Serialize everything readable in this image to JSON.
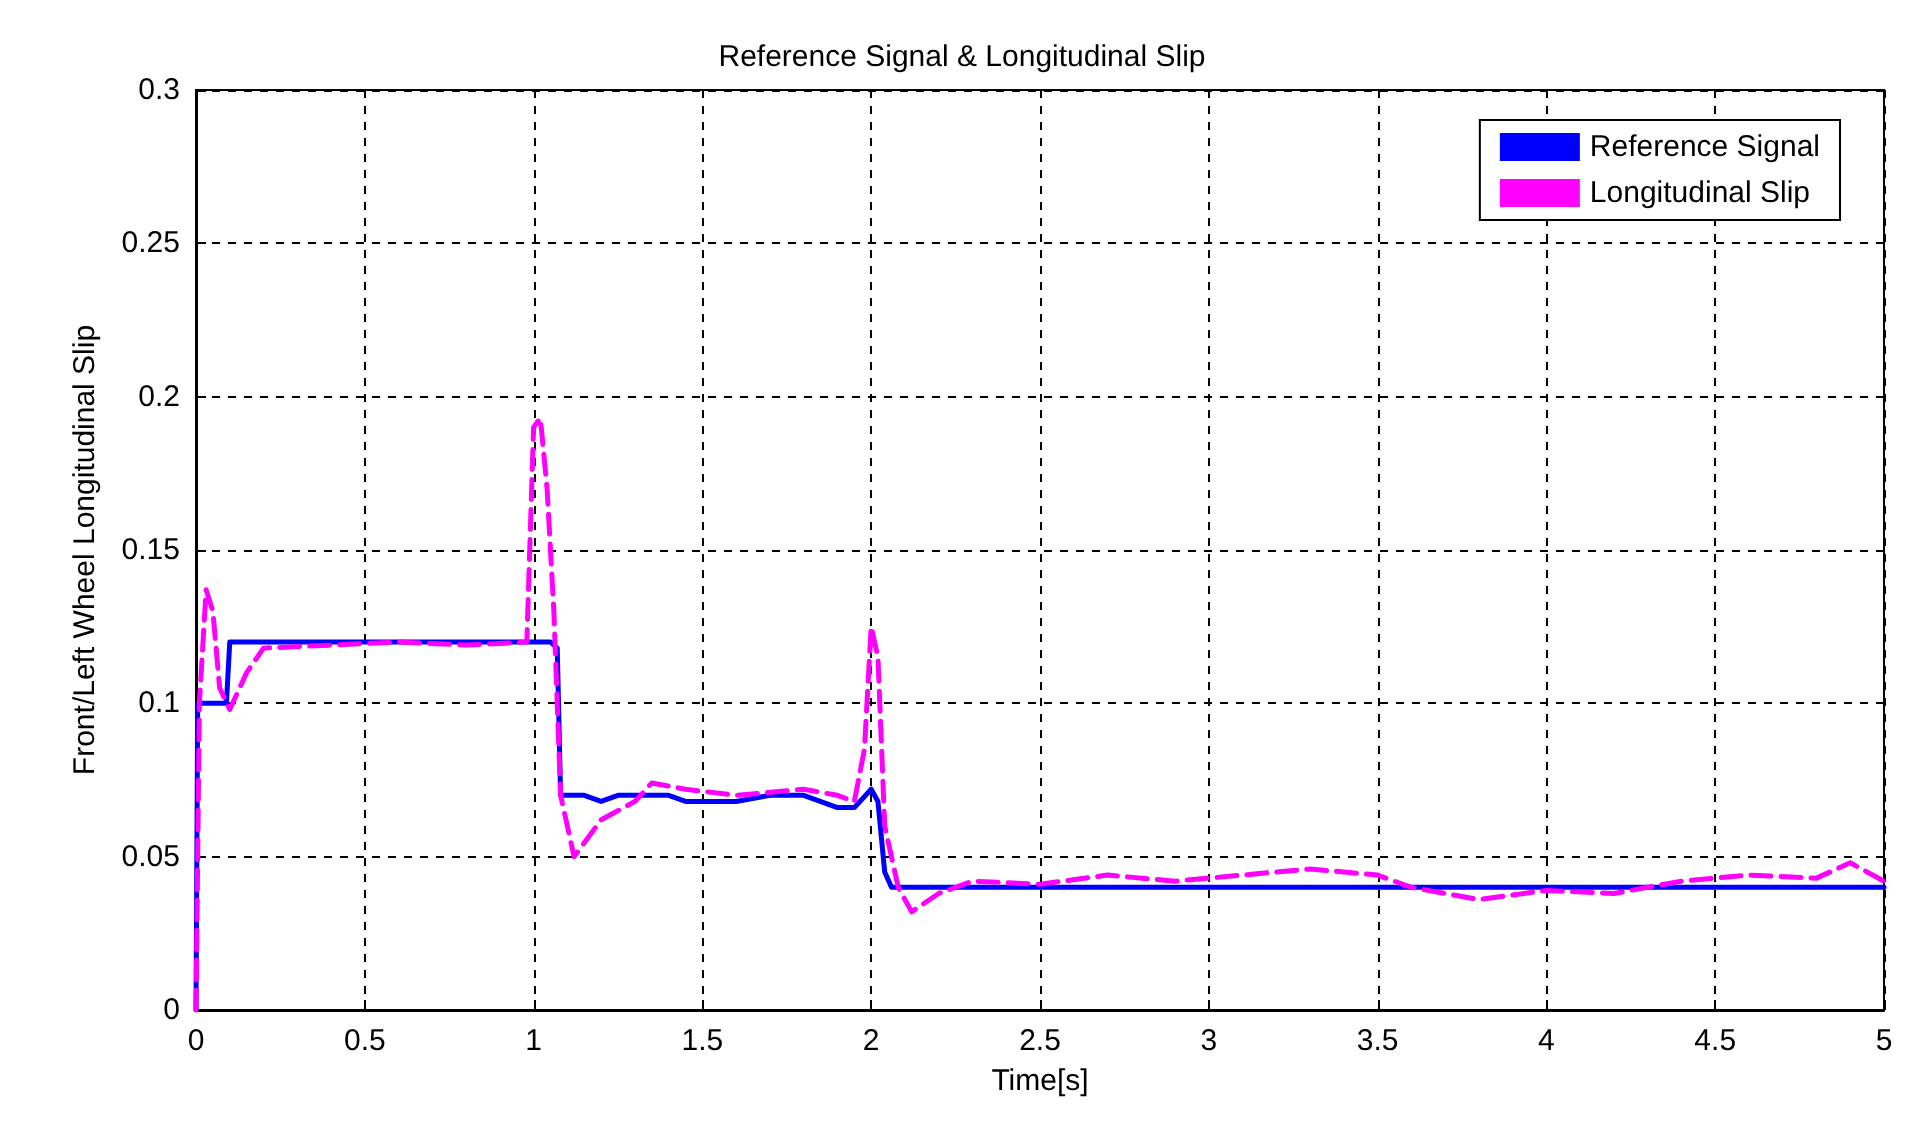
{
  "chart_data": {
    "type": "line",
    "title": "Reference Signal & Longitudinal Slip",
    "xlabel": "Time[s]",
    "ylabel": "Front/Left Wheel Longitudinal Slip",
    "xlim": [
      0,
      5
    ],
    "xticks": [
      0,
      0.5,
      1,
      1.5,
      2,
      2.5,
      3,
      3.5,
      4,
      4.5,
      5
    ],
    "ylim": [
      0,
      0.3
    ],
    "yticks": [
      0,
      0.05,
      0.1,
      0.15,
      0.2,
      0.25,
      0.3
    ],
    "grid": true,
    "legend": "top right",
    "marker": "none",
    "series": [
      {
        "name": "Reference Signal",
        "color": "#0000ff",
        "line_style": "solid",
        "x": [
          0,
          0.005,
          0.09,
          0.1,
          1.05,
          1.07,
          1.08,
          1.15,
          1.2,
          1.25,
          1.4,
          1.45,
          1.6,
          1.7,
          1.8,
          1.9,
          1.95,
          2.0,
          2.02,
          2.04,
          2.06,
          5
        ],
        "values": [
          0,
          0.1,
          0.1,
          0.12,
          0.12,
          0.118,
          0.07,
          0.07,
          0.068,
          0.07,
          0.07,
          0.068,
          0.068,
          0.07,
          0.07,
          0.066,
          0.066,
          0.072,
          0.068,
          0.045,
          0.04,
          0.04
        ]
      },
      {
        "name": "Longitudinal Slip",
        "color": "#ff00ff",
        "line_style": "dashed",
        "x": [
          0,
          0.01,
          0.03,
          0.05,
          0.07,
          0.1,
          0.15,
          0.2,
          0.4,
          0.6,
          0.8,
          0.98,
          1.0,
          1.02,
          1.04,
          1.06,
          1.08,
          1.12,
          1.2,
          1.3,
          1.35,
          1.45,
          1.6,
          1.8,
          1.9,
          1.95,
          1.98,
          2.0,
          2.02,
          2.04,
          2.08,
          2.12,
          2.2,
          2.3,
          2.5,
          2.7,
          2.9,
          3.1,
          3.3,
          3.5,
          3.6,
          3.8,
          4.0,
          4.2,
          4.4,
          4.6,
          4.8,
          4.9,
          5.0
        ],
        "values": [
          0,
          0.1,
          0.137,
          0.13,
          0.105,
          0.098,
          0.11,
          0.118,
          0.119,
          0.12,
          0.119,
          0.12,
          0.19,
          0.193,
          0.17,
          0.13,
          0.07,
          0.05,
          0.062,
          0.068,
          0.074,
          0.072,
          0.07,
          0.072,
          0.07,
          0.068,
          0.085,
          0.125,
          0.115,
          0.06,
          0.04,
          0.032,
          0.038,
          0.042,
          0.041,
          0.044,
          0.042,
          0.044,
          0.046,
          0.044,
          0.04,
          0.036,
          0.039,
          0.038,
          0.042,
          0.044,
          0.043,
          0.048,
          0.042
        ]
      }
    ]
  }
}
